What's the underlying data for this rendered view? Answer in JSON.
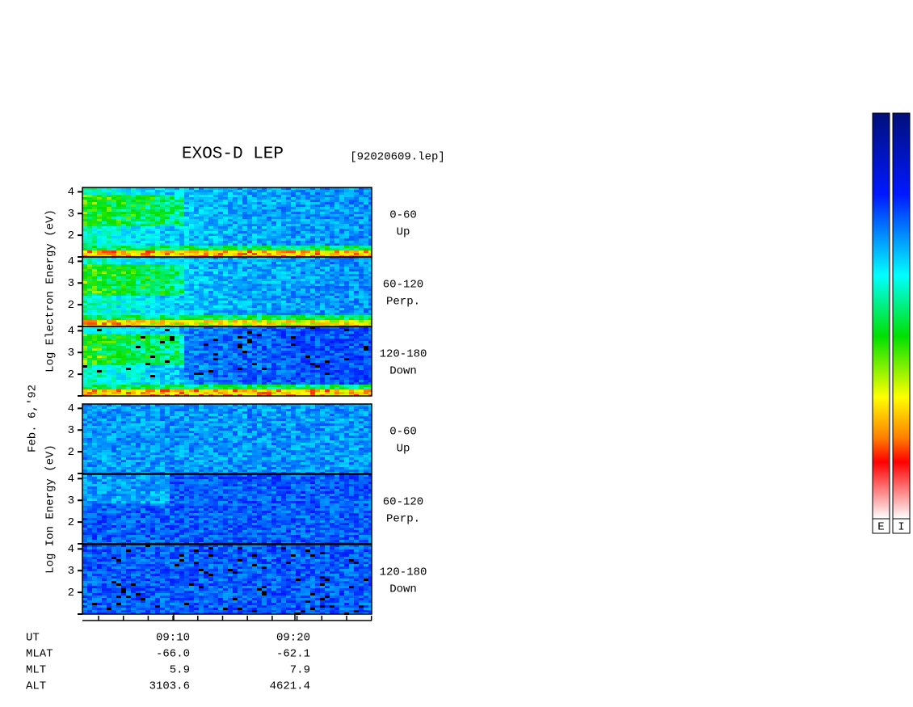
{
  "title": "EXOS-D LEP",
  "filename": "[92020609.lep]",
  "date_label": "Feb. 6,'92",
  "electron_axis_label": "Log  Electron  Energy (eV)",
  "ion_axis_label": "Log  Ion  Energy (eV)",
  "energy_axis": {
    "ylim": [
      1,
      4.2
    ],
    "yticks": [
      2,
      3,
      4
    ]
  },
  "panels": [
    {
      "range": "0-60",
      "direction": "Up"
    },
    {
      "range": "60-120",
      "direction": "Perp."
    },
    {
      "range": "120-180",
      "direction": "Down"
    },
    {
      "range": "0-60",
      "direction": "Up"
    },
    {
      "range": "60-120",
      "direction": "Perp."
    },
    {
      "range": "120-180",
      "direction": "Down"
    }
  ],
  "ephemeris": {
    "labels": [
      "UT",
      "MLAT",
      "MLT",
      "ALT"
    ],
    "columns": [
      [
        "09:10",
        "-66.0",
        "5.9",
        "3103.6"
      ],
      [
        "09:20",
        "-62.1",
        "7.9",
        "4621.4"
      ]
    ]
  },
  "colorbar_labels": [
    "E",
    "I"
  ]
}
